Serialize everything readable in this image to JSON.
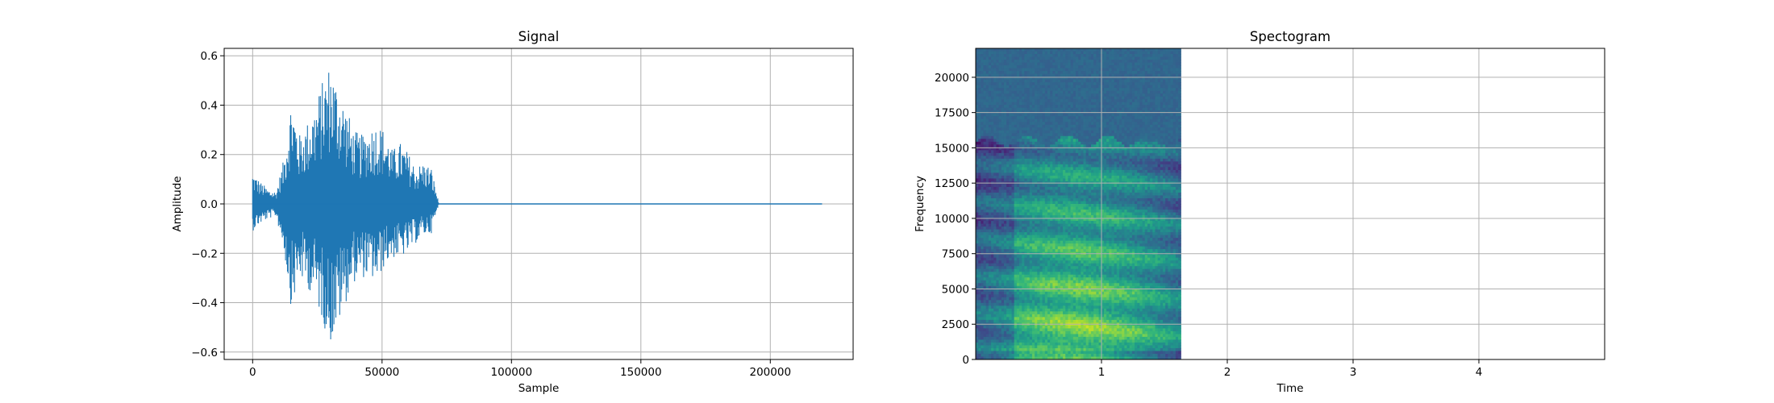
{
  "chart_data": [
    {
      "type": "line",
      "title": "Signal",
      "xlabel": "Sample",
      "ylabel": "Amplitude",
      "xlim": [
        -11000,
        232000
      ],
      "ylim": [
        -0.63,
        0.63
      ],
      "xticks": [
        0,
        50000,
        100000,
        150000,
        200000
      ],
      "yticks": [
        -0.6,
        -0.4,
        -0.2,
        0.0,
        0.2,
        0.4,
        0.6
      ],
      "xtick_labels": [
        "0",
        "50000",
        "100000",
        "150000",
        "200000"
      ],
      "ytick_labels": [
        "−0.6",
        "−0.4",
        "−0.2",
        "0.0",
        "0.2",
        "0.4",
        "0.6"
      ],
      "grid": true,
      "color": "#1f77b4",
      "series": [
        {
          "x": [
            0,
            3000,
            6000,
            9000,
            12000,
            15000,
            18000,
            21000,
            24000,
            27000,
            30000,
            33000,
            36000,
            39000,
            42000,
            45000,
            48000,
            51000,
            54000,
            57000,
            60000,
            63000,
            66000,
            69000,
            72000,
            100000,
            150000,
            200000,
            220000
          ],
          "amp_max": [
            0.13,
            0.09,
            0.06,
            0.05,
            0.18,
            0.44,
            0.28,
            0.33,
            0.4,
            0.5,
            0.58,
            0.48,
            0.4,
            0.3,
            0.28,
            0.31,
            0.33,
            0.3,
            0.22,
            0.25,
            0.21,
            0.15,
            0.17,
            0.15,
            0.0,
            0.0,
            0.0,
            0.0,
            0.0
          ],
          "amp_min": [
            -0.11,
            -0.08,
            -0.06,
            -0.05,
            -0.18,
            -0.43,
            -0.3,
            -0.34,
            -0.38,
            -0.48,
            -0.57,
            -0.5,
            -0.4,
            -0.32,
            -0.3,
            -0.3,
            -0.32,
            -0.25,
            -0.22,
            -0.22,
            -0.2,
            -0.16,
            -0.13,
            -0.12,
            0.0,
            0.0,
            0.0,
            0.0,
            0.0
          ]
        }
      ]
    },
    {
      "type": "heatmap",
      "title": "Spectogram",
      "xlabel": "Time",
      "ylabel": "Frequency",
      "xlim": [
        0,
        5
      ],
      "ylim": [
        0,
        22050
      ],
      "xticks": [
        1,
        2,
        3,
        4
      ],
      "yticks": [
        0,
        2500,
        5000,
        7500,
        10000,
        12500,
        15000,
        17500,
        20000
      ],
      "xtick_labels": [
        "1",
        "2",
        "3",
        "4"
      ],
      "ytick_labels": [
        "0",
        "2500",
        "5000",
        "7500",
        "10000",
        "12500",
        "15000",
        "17500",
        "20000"
      ],
      "grid": true,
      "colormap": "viridis",
      "data_end_time": 1.63,
      "cutoff_frequency": 15500,
      "high_band_color": "#31688e"
    }
  ]
}
